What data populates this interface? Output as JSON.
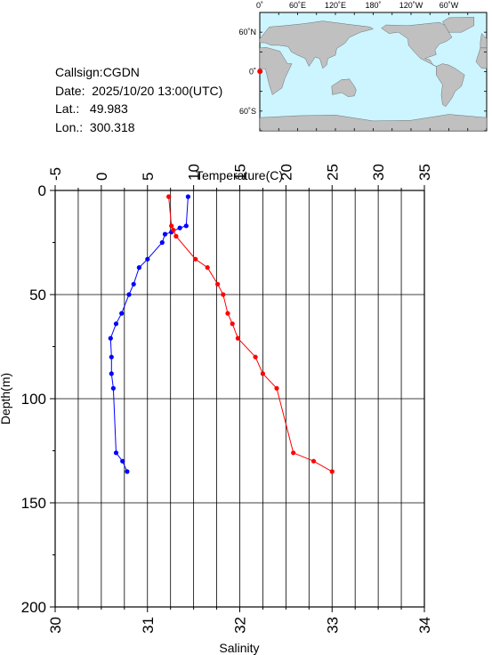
{
  "station": {
    "callsign": "Callsign:CGDN",
    "date": "Date:  2025/10/20 13:00(UTC)",
    "lat": "Lat.:   49.983",
    "lon": "Lon.:  300.318"
  },
  "map": {
    "top_labels": [
      "0˚",
      "60˚E",
      "120˚E",
      "180˚",
      "120˚W",
      "60˚W"
    ],
    "left_labels": [
      "60˚N",
      "0˚",
      "60˚S"
    ],
    "ocean_color": "#ccf5ff",
    "land_color": "#c0c0c0",
    "marker_color": "#ff0000"
  },
  "chart_data": {
    "type": "line",
    "title": "",
    "ylabel": "Depth(m)",
    "ylim": [
      0,
      200
    ],
    "yticks": [
      0,
      50,
      100,
      150,
      200
    ],
    "inverted_y": true,
    "grid": true,
    "top_axis": {
      "label": "Temperature(C)",
      "range": [
        -5,
        35
      ],
      "ticks": [
        -5,
        0,
        5,
        10,
        15,
        20,
        25,
        30,
        35
      ]
    },
    "bottom_axis": {
      "label": "Salinity",
      "range": [
        30,
        34
      ],
      "ticks": [
        30,
        31,
        32,
        33,
        34
      ]
    },
    "series": [
      {
        "quantity": "temperature",
        "axis": "top",
        "color": "#0000ff",
        "points": [
          [
            9.4,
            3
          ],
          [
            9.2,
            17
          ],
          [
            8.5,
            18
          ],
          [
            7.6,
            20
          ],
          [
            6.9,
            21
          ],
          [
            6.6,
            25
          ],
          [
            5.0,
            33
          ],
          [
            4.1,
            37
          ],
          [
            3.5,
            45
          ],
          [
            3.0,
            50
          ],
          [
            2.2,
            59
          ],
          [
            1.6,
            64
          ],
          [
            1.0,
            71
          ],
          [
            1.1,
            80
          ],
          [
            1.1,
            88
          ],
          [
            1.3,
            95
          ],
          [
            1.6,
            126
          ],
          [
            2.3,
            130
          ],
          [
            2.8,
            135
          ]
        ]
      },
      {
        "quantity": "salinity",
        "axis": "bottom",
        "color": "#ff0000",
        "points": [
          [
            31.23,
            3
          ],
          [
            31.26,
            17
          ],
          [
            31.28,
            19
          ],
          [
            31.31,
            22
          ],
          [
            31.52,
            33
          ],
          [
            31.65,
            37
          ],
          [
            31.76,
            45
          ],
          [
            31.82,
            50
          ],
          [
            31.87,
            59
          ],
          [
            31.92,
            64
          ],
          [
            31.98,
            71
          ],
          [
            32.17,
            80
          ],
          [
            32.25,
            88
          ],
          [
            32.4,
            95
          ],
          [
            32.58,
            126
          ],
          [
            32.8,
            130
          ],
          [
            33.0,
            135
          ]
        ]
      }
    ]
  }
}
